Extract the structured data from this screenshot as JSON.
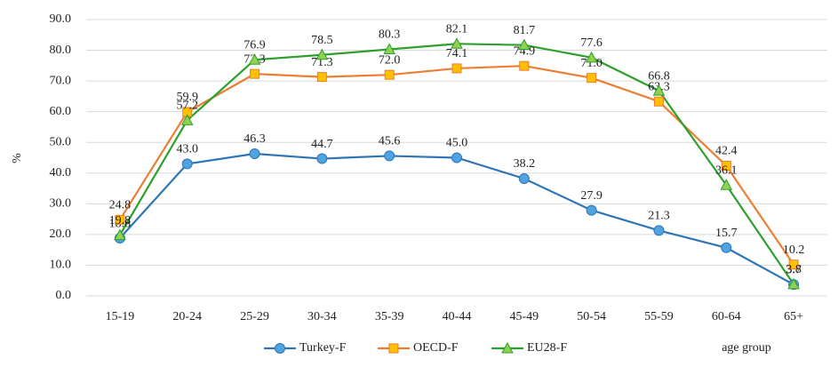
{
  "chart_data": {
    "type": "line",
    "y_label": "%",
    "x_label": "age group",
    "categories": [
      "15-19",
      "20-24",
      "25-29",
      "30-34",
      "35-39",
      "40-44",
      "45-49",
      "50-54",
      "55-59",
      "60-64",
      "65+"
    ],
    "ylim": [
      0,
      90
    ],
    "yticks": [
      {
        "value": 0,
        "label": "0.0"
      },
      {
        "value": 10,
        "label": "10.0"
      },
      {
        "value": 20,
        "label": "20.0"
      },
      {
        "value": 30,
        "label": "30.0"
      },
      {
        "value": 40,
        "label": "40.0"
      },
      {
        "value": 50,
        "label": "50.0"
      },
      {
        "value": 60,
        "label": "60.0"
      },
      {
        "value": 70,
        "label": "70.0"
      },
      {
        "value": 80,
        "label": "80.0"
      },
      {
        "value": 90,
        "label": "90.0"
      }
    ],
    "grid": true,
    "legend": "bottom",
    "series": [
      {
        "name": "Turkey-F",
        "color": "#2e75b6",
        "marker": "circle",
        "marker_color": "#4fa3e0",
        "values": [
          18.8,
          43,
          46.3,
          44.7,
          45.6,
          45,
          38.2,
          27.9,
          21.3,
          15.7,
          3.7
        ],
        "value_labels": [
          "18.8",
          "43.0",
          "46.3",
          "44.7",
          "45.6",
          "45.0",
          "38.2",
          "27.9",
          "21.3",
          "15.7",
          "3.7"
        ]
      },
      {
        "name": "OECD-F",
        "color": "#ed7d31",
        "marker": "square",
        "marker_color": "#ffc000",
        "values": [
          24.8,
          59.9,
          72.3,
          71.3,
          72,
          74.1,
          74.9,
          71,
          63.3,
          42.4,
          10.2
        ],
        "value_labels": [
          "24.8",
          "59.9",
          "72.3",
          "71.3",
          "72.0",
          "74.1",
          "74.9",
          "71.0",
          "63.3",
          "42.4",
          "10.2"
        ]
      },
      {
        "name": "EU28-F",
        "color": "#2ca02c",
        "marker": "triangle",
        "marker_color": "#92d050",
        "values": [
          19.8,
          57.2,
          76.9,
          78.5,
          80.3,
          82.1,
          81.7,
          77.6,
          66.8,
          36.1,
          3.8
        ],
        "value_labels": [
          "19.8",
          "57.2",
          "76.9",
          "78.5",
          "80.3",
          "82.1",
          "81.7",
          "77.6",
          "66.8",
          "36.1",
          "3.8"
        ]
      }
    ]
  }
}
